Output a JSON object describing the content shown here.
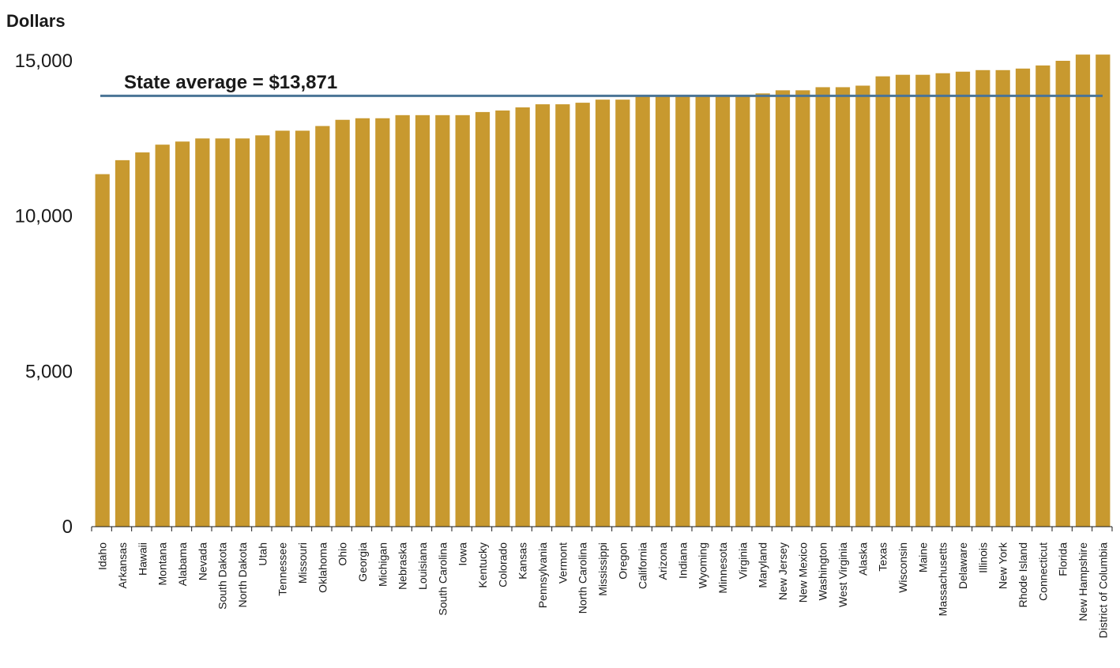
{
  "chart_data": {
    "type": "bar",
    "ylabel": "Dollars",
    "ylim": [
      0,
      15000
    ],
    "yticks": [
      0,
      5000,
      10000,
      15000
    ],
    "ytick_labels": [
      "0",
      "5,000",
      "10,000",
      "15,000"
    ],
    "bar_color": "#c8992f",
    "reference_line": {
      "value": 13871,
      "label": "State average = $13,871",
      "color": "#4a7496"
    },
    "categories": [
      "Idaho",
      "Arkansas",
      "Hawaii",
      "Montana",
      "Alabama",
      "Nevada",
      "South Dakota",
      "North Dakota",
      "Utah",
      "Tennessee",
      "Missouri",
      "Oklahoma",
      "Ohio",
      "Georgia",
      "Michigan",
      "Nebraska",
      "Louisiana",
      "South Carolina",
      "Iowa",
      "Kentucky",
      "Colorado",
      "Kansas",
      "Pennsylvania",
      "Vermont",
      "North Carolina",
      "Mississippi",
      "Oregon",
      "California",
      "Arizona",
      "Indiana",
      "Wyoming",
      "Minnesota",
      "Virginia",
      "Maryland",
      "New Jersey",
      "New Mexico",
      "Washington",
      "West Virginia",
      "Alaska",
      "Texas",
      "Wisconsin",
      "Maine",
      "Massachusetts",
      "Delaware",
      "Illinois",
      "New York",
      "Rhode Island",
      "Connecticut",
      "Florida",
      "New Hampshire",
      "District of Columbia"
    ],
    "values": [
      11350,
      11800,
      12050,
      12300,
      12400,
      12500,
      12500,
      12500,
      12600,
      12750,
      12750,
      12900,
      13100,
      13150,
      13150,
      13250,
      13250,
      13250,
      13250,
      13350,
      13400,
      13500,
      13600,
      13600,
      13650,
      13750,
      13750,
      13850,
      13850,
      13900,
      13900,
      13900,
      13900,
      13950,
      14050,
      14050,
      14150,
      14150,
      14200,
      14500,
      14550,
      14550,
      14600,
      14650,
      14700,
      14700,
      14750,
      14850,
      15000,
      15200,
      15200
    ]
  }
}
